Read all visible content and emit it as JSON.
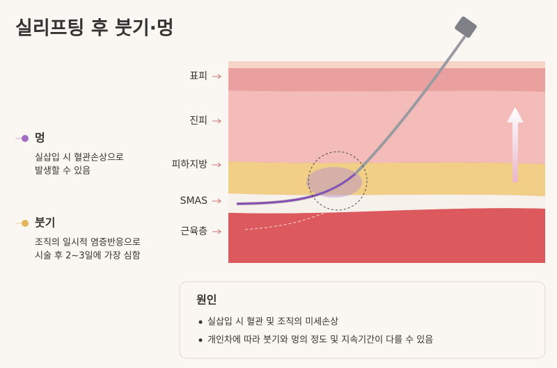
{
  "header": {
    "title": "실리프팅 후 붓기·멍"
  },
  "layers": [
    "표피",
    "진피",
    "피하지방",
    "SMAS",
    "근육층"
  ],
  "items": [
    {
      "title": "멍",
      "lines": [
        "실삽입 시 혈관손상으로",
        "발생할 수 있음"
      ]
    },
    {
      "title": "붓기",
      "lines": [
        "조직의 일시적 염증반응으로",
        "시술 후 2~3일에 가장 심함"
      ]
    }
  ],
  "cause": {
    "title": "원인",
    "bullets": [
      "실삽입 시 혈관 및 조직의 미세손상",
      "개인차에 따라 붓기와 멍의 정도 및 지속기간이 다를 수 있음"
    ]
  }
}
